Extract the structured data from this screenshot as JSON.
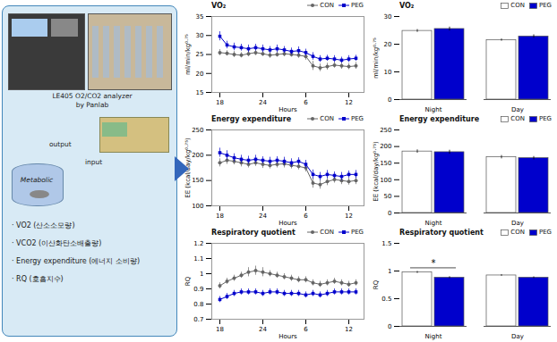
{
  "chart_data": [
    {
      "type": "diagram",
      "color": "#d8eaf5",
      "annotations": [
        {
          "text": "LE405 O2/CO2 analyzer"
        },
        {
          "text": "by Panlab"
        },
        {
          "text": "output"
        },
        {
          "text": "input"
        },
        {
          "text": "Metabolic"
        },
        {
          "text": "· VO2 (산소소모량)"
        },
        {
          "text": "· VCO2 (이산화탄소배출량)"
        },
        {
          "text": "· Energy expenditure (에너지 소비량)"
        },
        {
          "text": "· RQ (호흡지수)"
        }
      ]
    },
    {
      "type": "line",
      "title": "VO₂",
      "xlabel": "Hours",
      "ylabel": "ml/min/kg⁰·⁷⁵",
      "categories": [
        "18",
        null,
        null,
        null,
        null,
        null,
        "24",
        null,
        null,
        null,
        null,
        null,
        "6",
        null,
        null,
        null,
        null,
        null,
        "12",
        null
      ],
      "series": [
        {
          "name": "CON",
          "color": "#666666",
          "marker": "circle",
          "values": [
            25.5,
            25.3,
            25.0,
            24.8,
            25.2,
            25.5,
            25.2,
            24.8,
            25.0,
            25.2,
            25.0,
            24.8,
            24.5,
            22.0,
            21.5,
            21.8,
            22.2,
            22.0,
            21.8,
            22.0
          ],
          "errors": [
            0.8,
            0.7,
            0.8,
            0.7,
            0.8,
            0.8,
            0.7,
            0.8,
            0.7,
            0.8,
            0.7,
            0.8,
            1.0,
            1.2,
            1.0,
            0.9,
            0.8,
            0.9,
            0.8,
            0.9
          ]
        },
        {
          "name": "PEG",
          "color": "#0000cc",
          "marker": "square",
          "values": [
            29.8,
            27.5,
            27.0,
            26.8,
            26.5,
            26.8,
            26.5,
            26.2,
            26.5,
            26.2,
            25.8,
            26.0,
            25.5,
            24.5,
            23.8,
            24.0,
            23.8,
            23.5,
            23.8,
            24.0
          ],
          "errors": [
            1.2,
            1.0,
            1.0,
            0.9,
            1.0,
            0.9,
            1.0,
            0.9,
            1.0,
            0.9,
            0.9,
            1.0,
            0.9,
            1.0,
            0.9,
            0.8,
            0.9,
            0.8,
            0.9,
            0.8
          ]
        }
      ],
      "ylim": [
        15,
        35
      ],
      "yticks": [
        15,
        20,
        25,
        30,
        35
      ],
      "legend": "upper right"
    },
    {
      "type": "line",
      "title": "Energy expenditure",
      "xlabel": "Hours",
      "ylabel": "EE (kcal/day/kg⁰·⁷⁵)",
      "categories": [
        "18",
        null,
        null,
        null,
        null,
        null,
        "24",
        null,
        null,
        null,
        null,
        null,
        "6",
        null,
        null,
        null,
        null,
        null,
        "12",
        null
      ],
      "series": [
        {
          "name": "CON",
          "color": "#666666",
          "marker": "circle",
          "values": [
            185,
            190,
            188,
            185,
            182,
            185,
            182,
            180,
            182,
            183,
            180,
            178,
            175,
            145,
            142,
            148,
            152,
            150,
            148,
            150
          ],
          "errors": [
            8,
            8,
            7,
            8,
            7,
            7,
            8,
            7,
            7,
            8,
            7,
            7,
            8,
            10,
            9,
            8,
            7,
            8,
            7,
            8
          ]
        },
        {
          "name": "PEG",
          "color": "#0000cc",
          "marker": "square",
          "values": [
            205,
            200,
            195,
            192,
            190,
            192,
            190,
            188,
            190,
            188,
            185,
            188,
            182,
            162,
            158,
            162,
            160,
            158,
            162,
            162
          ],
          "errors": [
            9,
            9,
            8,
            8,
            8,
            8,
            7,
            8,
            7,
            8,
            8,
            7,
            8,
            9,
            8,
            8,
            7,
            8,
            7,
            8
          ]
        }
      ],
      "ylim": [
        100,
        250
      ],
      "yticks": [
        100,
        150,
        200,
        250
      ],
      "legend": "upper right"
    },
    {
      "type": "line",
      "title": "Respiratory quotient",
      "xlabel": "Hours",
      "ylabel": "RQ",
      "categories": [
        "18",
        null,
        null,
        null,
        null,
        null,
        "24",
        null,
        null,
        null,
        null,
        null,
        "6",
        null,
        null,
        null,
        null,
        null,
        "12",
        null
      ],
      "series": [
        {
          "name": "CON",
          "color": "#666666",
          "marker": "circle",
          "values": [
            0.92,
            0.95,
            0.97,
            0.99,
            1.01,
            1.02,
            1.01,
            1.0,
            0.99,
            0.98,
            0.97,
            0.96,
            0.96,
            0.94,
            0.93,
            0.94,
            0.95,
            0.94,
            0.93,
            0.94
          ],
          "errors": [
            0.02,
            0.02,
            0.02,
            0.02,
            0.03,
            0.03,
            0.03,
            0.02,
            0.02,
            0.02,
            0.02,
            0.02,
            0.02,
            0.02,
            0.02,
            0.02,
            0.02,
            0.02,
            0.02,
            0.02
          ]
        },
        {
          "name": "PEG",
          "color": "#0000cc",
          "marker": "square",
          "values": [
            0.83,
            0.85,
            0.87,
            0.88,
            0.88,
            0.88,
            0.87,
            0.88,
            0.88,
            0.87,
            0.87,
            0.87,
            0.86,
            0.87,
            0.86,
            0.87,
            0.88,
            0.88,
            0.88,
            0.88
          ],
          "errors": [
            0.02,
            0.02,
            0.02,
            0.02,
            0.02,
            0.02,
            0.02,
            0.02,
            0.02,
            0.02,
            0.02,
            0.02,
            0.02,
            0.02,
            0.02,
            0.02,
            0.02,
            0.02,
            0.02,
            0.02
          ]
        }
      ],
      "ylim": [
        0.7,
        1.2
      ],
      "yticks": [
        0.7,
        0.8,
        0.9,
        1,
        1.1,
        1.2
      ],
      "legend": "upper right"
    },
    {
      "type": "bar",
      "title": "VO₂",
      "ylabel": "ml/min/kg⁰·⁷⁵",
      "categories": [
        "Night",
        "Day"
      ],
      "series": [
        {
          "name": "CON",
          "color": "#ffffff",
          "values": [
            24.8,
            21.5
          ],
          "errors": [
            0.5,
            0.4
          ]
        },
        {
          "name": "PEG",
          "color": "#0000cc",
          "values": [
            25.5,
            22.8
          ],
          "errors": [
            0.7,
            0.6
          ]
        }
      ],
      "ylim": [
        0,
        30
      ],
      "yticks": [
        0,
        10,
        20,
        30
      ],
      "legend": "upper right"
    },
    {
      "type": "bar",
      "title": "Energy expenditure",
      "ylabel": "EE (kcal/day/kg⁰·⁷⁵)",
      "categories": [
        "Night",
        "Day"
      ],
      "series": [
        {
          "name": "CON",
          "color": "#ffffff",
          "values": [
            185,
            168
          ],
          "errors": [
            5,
            5
          ]
        },
        {
          "name": "PEG",
          "color": "#0000cc",
          "values": [
            183,
            165
          ],
          "errors": [
            6,
            5
          ]
        }
      ],
      "ylim": [
        0,
        250
      ],
      "yticks": [
        0,
        50,
        100,
        150,
        200,
        250
      ],
      "legend": "upper right"
    },
    {
      "type": "bar",
      "title": "Respiratory quotient",
      "ylabel": "RQ",
      "categories": [
        "Night",
        "Day"
      ],
      "series": [
        {
          "name": "CON",
          "color": "#ffffff",
          "values": [
            0.975,
            0.92
          ],
          "errors": [
            0.018,
            0.015
          ]
        },
        {
          "name": "PEG",
          "color": "#0000cc",
          "values": [
            0.88,
            0.88
          ],
          "errors": [
            0.018,
            0.015
          ]
        }
      ],
      "ylim": [
        0,
        1.5
      ],
      "yticks": [
        0,
        0.5,
        1,
        1.5
      ],
      "legend": "upper right",
      "annotations": [
        {
          "text": "*",
          "category": "Night"
        }
      ]
    }
  ]
}
